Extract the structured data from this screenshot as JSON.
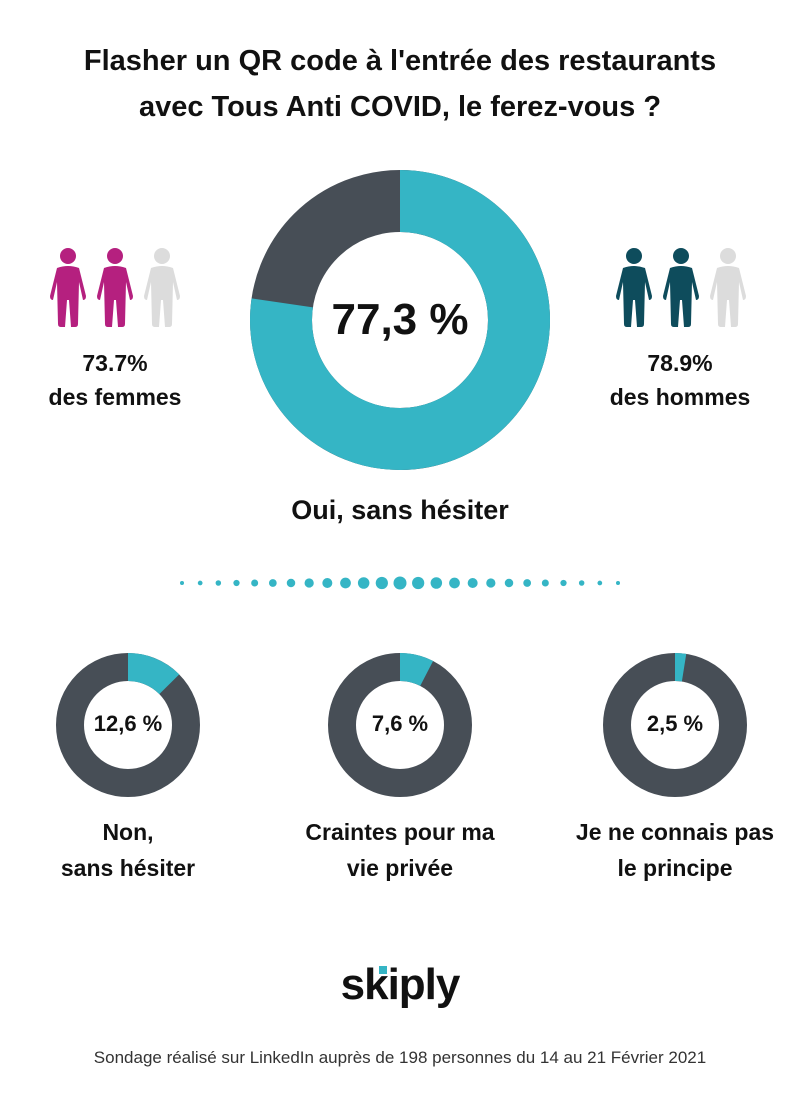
{
  "title": {
    "line1": "Flasher un QR code à l'entrée des restaurants",
    "line2": "avec Tous Anti COVID, le ferez-vous ?"
  },
  "colors": {
    "teal": "#35b5c5",
    "dark": "#474e56",
    "magenta": "#b5207f",
    "dark_teal": "#0e4c5c",
    "light_grey": "#dcdcdc"
  },
  "women": {
    "pct_label": "73.7%",
    "label": "des femmes",
    "value": 73.7
  },
  "men": {
    "pct_label": "78.9%",
    "label": "des hommes",
    "value": 78.9
  },
  "main": {
    "pct_label": "77,3 %",
    "label": "Oui, sans hésiter"
  },
  "small": [
    {
      "pct_label": "12,6 %",
      "label_line1": "Non,",
      "label_line2": "sans hésiter"
    },
    {
      "pct_label": "7,6 %",
      "label_line1": "Craintes pour ma",
      "label_line2": "vie privée"
    },
    {
      "pct_label": "2,5 %",
      "label_line1": "Je ne connais pas",
      "label_line2": "le principe"
    }
  ],
  "logo": {
    "text": "skiply"
  },
  "footnote": "Sondage réalisé sur LinkedIn auprès de 198 personnes du 14 au 21 Février 2021",
  "chart_data": [
    {
      "type": "pie",
      "categories": [
        "Oui, sans hésiter"
      ],
      "values": [
        77.3
      ]
    },
    {
      "type": "pie",
      "categories": [
        "Non, sans hésiter"
      ],
      "values": [
        12.6
      ]
    },
    {
      "type": "pie",
      "categories": [
        "Craintes pour ma vie privée"
      ],
      "values": [
        7.6
      ]
    },
    {
      "type": "pie",
      "categories": [
        "Je ne connais pas le principe"
      ],
      "values": [
        2.5
      ]
    }
  ]
}
